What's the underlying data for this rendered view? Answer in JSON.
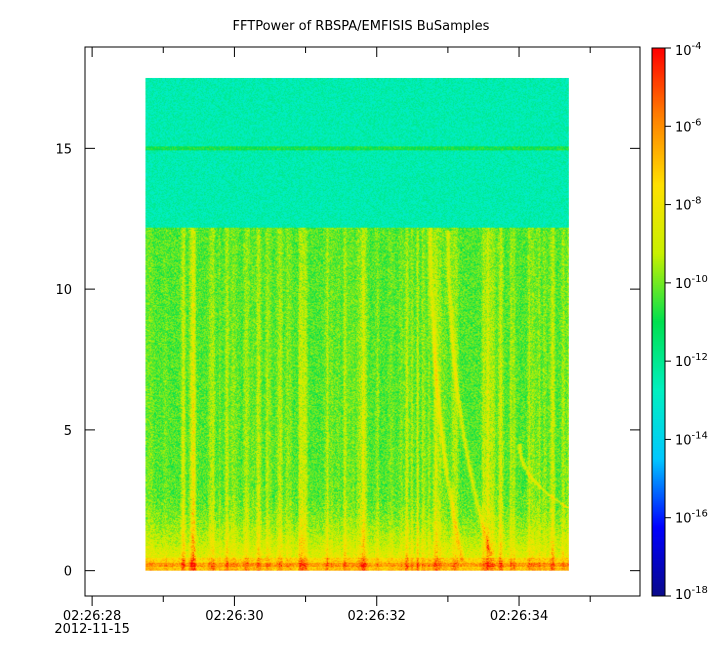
{
  "chart_data": {
    "type": "heatmap",
    "title": "FFTPower of RBSPA/EMFISIS  BuSamples",
    "xlabel": "",
    "ylabel": "",
    "x_axis": {
      "range": [
        "02:26:27.9",
        "02:26:35.7"
      ],
      "ticks": [
        {
          "value": 28,
          "label": "02:26:28"
        },
        {
          "value": 30,
          "label": "02:26:30"
        },
        {
          "value": 32,
          "label": "02:26:32"
        },
        {
          "value": 34,
          "label": "02:26:34"
        }
      ],
      "minor_ticks": [
        29,
        31,
        33,
        35
      ],
      "date_label": "2012-11-15"
    },
    "y_axis": {
      "range": [
        -0.9,
        18.6
      ],
      "ticks": [
        {
          "value": 0,
          "label": "0"
        },
        {
          "value": 5,
          "label": "5"
        },
        {
          "value": 10,
          "label": "10"
        },
        {
          "value": 15,
          "label": "15"
        }
      ]
    },
    "data_extent": {
      "x": [
        28.75,
        34.7
      ],
      "y": [
        0,
        17.5
      ]
    },
    "z_axis": {
      "scale": "log",
      "range": [
        1e-18,
        0.0001
      ],
      "ticks": [
        {
          "value": 0.0001,
          "base": "10",
          "exp": "-4"
        },
        {
          "value": 1e-06,
          "base": "10",
          "exp": "-6"
        },
        {
          "value": 1e-08,
          "base": "10",
          "exp": "-8"
        },
        {
          "value": 1e-10,
          "base": "10",
          "exp": "-10"
        },
        {
          "value": 1e-12,
          "base": "10",
          "exp": "-12"
        },
        {
          "value": 1e-14,
          "base": "10",
          "exp": "-14"
        },
        {
          "value": 1e-16,
          "base": "10",
          "exp": "-16"
        },
        {
          "value": 1e-18,
          "base": "10",
          "exp": "-18"
        }
      ],
      "colormap": [
        "#0a0a8c",
        "#0000ff",
        "#00c8ff",
        "#00f0c0",
        "#00e050",
        "#c8f000",
        "#ffe000",
        "#ff8000",
        "#ff0000"
      ]
    },
    "features": {
      "background_level_upper_band_log10": -12.5,
      "background_level_lower_band_log10": -10.3,
      "band_boundary_y": 12.2,
      "horizontal_line_y": 15.0,
      "low_frequency_enhancement_y": [
        0,
        3
      ],
      "low_frequency_enhancement_log10": -8.2,
      "chorus_curves": [
        {
          "x_top": 32.75,
          "y_top": 12.3,
          "x_bottom": 33.2,
          "y_bottom": 0.3
        },
        {
          "x_top": 33.0,
          "y_top": 12.1,
          "x_bottom": 33.6,
          "y_bottom": 0.5
        },
        {
          "x_top": 34.0,
          "y_top": 4.5,
          "x_bottom": 34.7,
          "y_bottom": 2.2
        }
      ]
    }
  }
}
